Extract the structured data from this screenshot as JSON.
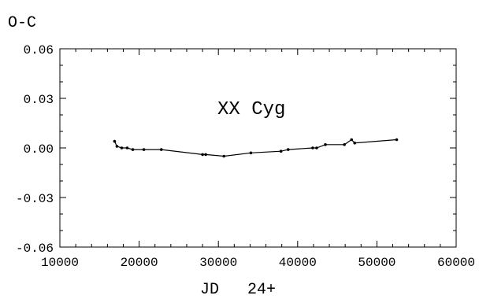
{
  "chart_data": {
    "type": "line",
    "title": "XX Cyg",
    "xlabel": "JD   24+",
    "ylabel": "O-C",
    "xlim": [
      10000,
      60000
    ],
    "ylim": [
      -0.06,
      0.06
    ],
    "x_ticks": [
      10000,
      20000,
      30000,
      40000,
      50000,
      60000
    ],
    "x_tick_labels": [
      "10000",
      "20000",
      "30000",
      "40000",
      "50000",
      "60000"
    ],
    "y_ticks": [
      0.06,
      0.03,
      0.0,
      -0.03,
      -0.06
    ],
    "y_tick_labels": [
      "0.06",
      "0.03",
      "0.00",
      "-0.03",
      "-0.06"
    ],
    "grid": false,
    "series": [
      {
        "x": [
          16900,
          17200,
          17800,
          18500,
          19200,
          20600,
          22800,
          28000,
          28400,
          30700,
          34100,
          37900,
          38800,
          41900,
          42400,
          43500,
          45900,
          46800,
          47200,
          52500
        ],
        "y": [
          0.004,
          0.001,
          0.0,
          0.0,
          -0.001,
          -0.001,
          -0.001,
          -0.004,
          -0.004,
          -0.005,
          -0.003,
          -0.002,
          -0.001,
          0.0,
          0.0,
          0.002,
          0.002,
          0.005,
          0.003,
          0.005
        ]
      }
    ],
    "colors": {
      "line": "#000000",
      "axis": "#000000"
    }
  }
}
